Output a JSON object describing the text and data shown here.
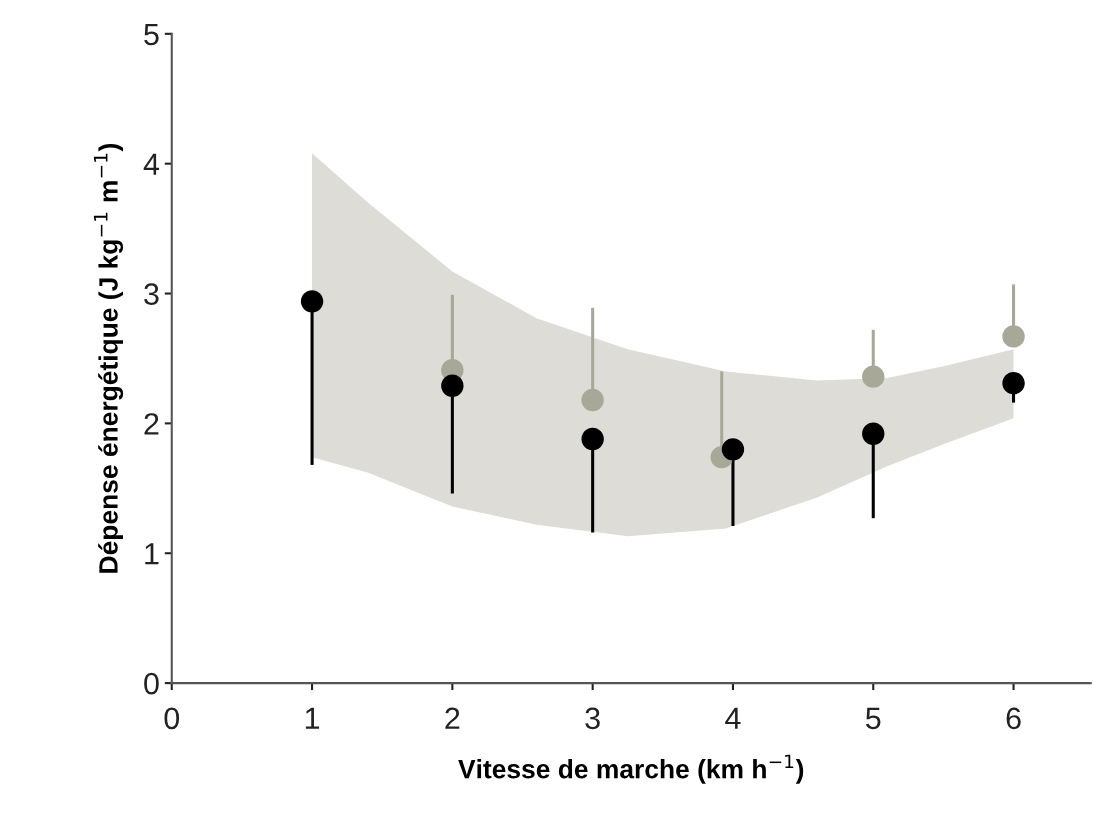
{
  "chart_data": {
    "type": "scatter",
    "xlabel": "Vitesse de marche (km h$^{−1}$)",
    "ylabel": "Dépense énergétique (J kg$^{−1}$ m$^{−1}$)",
    "xlim": [
      0,
      6.55
    ],
    "ylim": [
      0,
      5
    ],
    "xticks": [
      0,
      1,
      2,
      3,
      4,
      5,
      6
    ],
    "yticks": [
      0,
      1,
      2,
      3,
      4,
      5
    ],
    "grid": false,
    "marker": "circle",
    "series": [
      {
        "type": "line",
        "color": "#dddcd6",
        "x": [
          1,
          1.4,
          2,
          2.6,
          3.25,
          3.95,
          4.6,
          5.1,
          5.5,
          6
        ],
        "values": [
          null,
          null,
          null,
          null,
          null,
          null,
          null,
          null,
          null,
          null
        ],
        "lower": [
          1.74,
          1.62,
          1.36,
          1.22,
          1.13,
          1.19,
          1.43,
          1.67,
          1.84,
          2.04
        ],
        "upper": [
          4.08,
          3.7,
          3.17,
          2.81,
          2.57,
          2.4,
          2.33,
          2.35,
          2.44,
          2.57
        ]
      },
      {
        "color": "#a8a898",
        "x": [
          2,
          3,
          3.92,
          5,
          6
        ],
        "values": [
          2.41,
          2.18,
          1.74,
          2.36,
          2.67
        ],
        "errors": [
          [
            2.41,
            2.99
          ],
          [
            2.18,
            2.89
          ],
          [
            1.74,
            2.4
          ],
          [
            2.36,
            2.72
          ],
          [
            2.67,
            3.07
          ]
        ]
      },
      {
        "color": "#000000",
        "x": [
          1,
          2,
          3,
          4,
          5,
          6
        ],
        "values": [
          2.94,
          2.29,
          1.88,
          1.8,
          1.92,
          2.31
        ],
        "errors": [
          [
            1.68,
            2.94
          ],
          [
            1.46,
            2.29
          ],
          [
            1.16,
            1.88
          ],
          [
            1.21,
            1.8
          ],
          [
            1.27,
            1.92
          ],
          [
            2.16,
            2.31
          ]
        ]
      }
    ]
  }
}
